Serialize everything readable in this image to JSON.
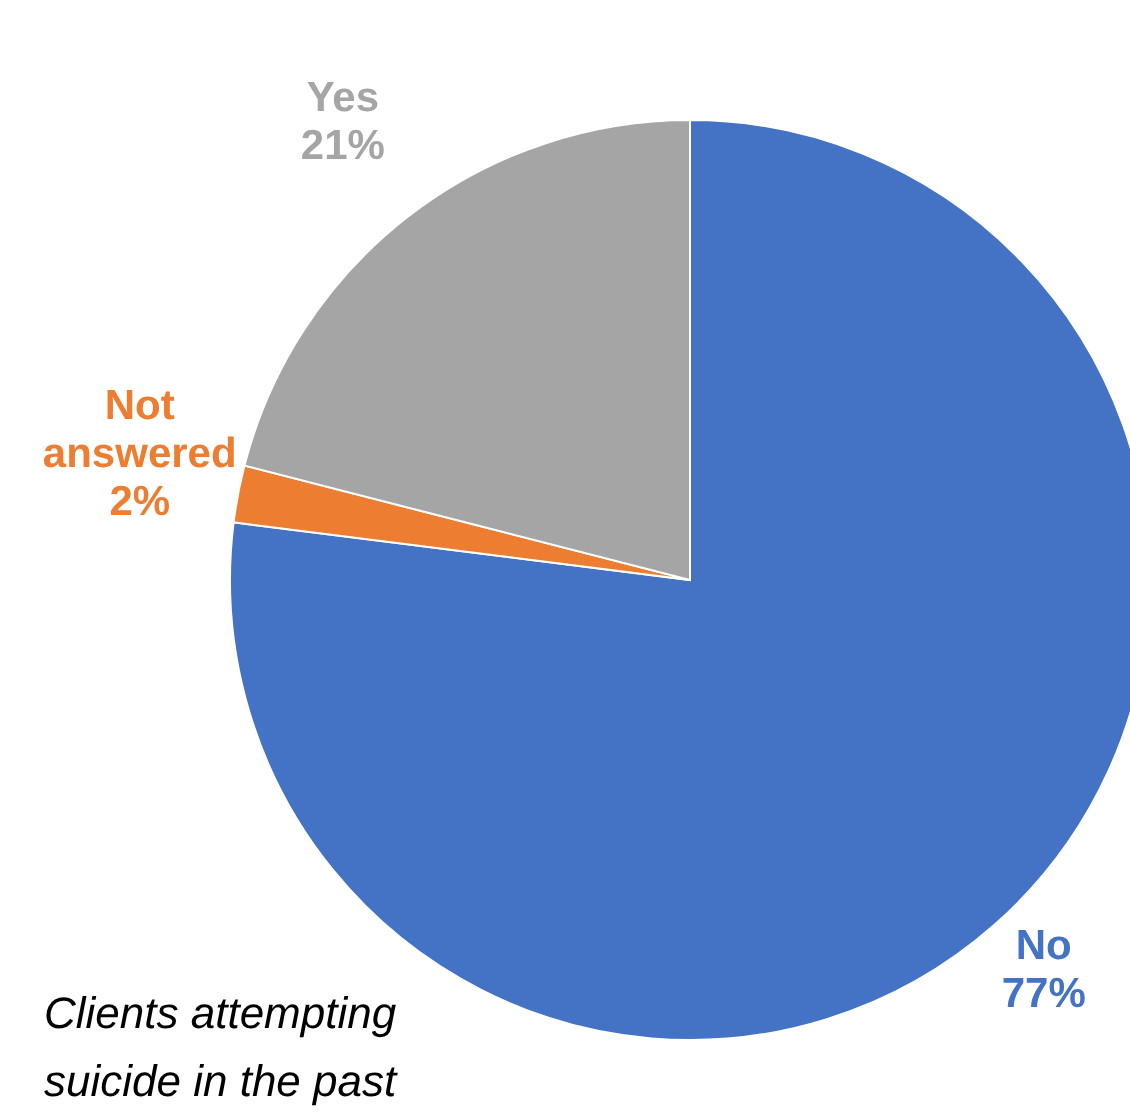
{
  "chart_data": {
    "type": "pie",
    "categories": [
      "No",
      "Not answered",
      "Yes"
    ],
    "values": [
      77,
      2,
      21
    ],
    "colors": [
      "#4472c4",
      "#ed7d31",
      "#a5a5a5"
    ],
    "value_labels": [
      "77%",
      "2%",
      "21%"
    ],
    "annotations": [
      "Clients attempting suicide in the past"
    ]
  }
}
